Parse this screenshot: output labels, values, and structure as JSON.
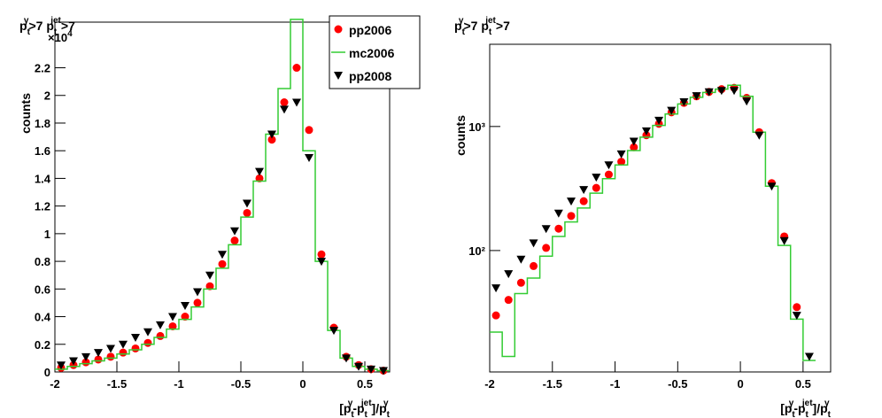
{
  "chart_data": [
    {
      "type": "line",
      "title": [
        "p",
        "t",
        "γ",
        ">7 p",
        "t",
        "jet",
        ">7"
      ],
      "y_label": "counts",
      "multiplier": [
        "×10",
        "4"
      ],
      "x_label": [
        "[p",
        "t",
        "γ",
        "-p",
        "t",
        "jet",
        "]/p",
        "t",
        "γ"
      ],
      "x": [
        -1.95,
        -1.85,
        -1.75,
        -1.65,
        -1.55,
        -1.45,
        -1.35,
        -1.25,
        -1.15,
        -1.05,
        -0.95,
        -0.85,
        -0.75,
        -0.65,
        -0.55,
        -0.45,
        -0.35,
        -0.25,
        -0.15,
        -0.05,
        0.05,
        0.15,
        0.25,
        0.35,
        0.45,
        0.55,
        0.65
      ],
      "xlim": [
        -2,
        0.7
      ],
      "xticks": [
        -2,
        -1.5,
        -1,
        -0.5,
        0,
        0.5
      ],
      "ylim": [
        0,
        2.53
      ],
      "yticks": [
        0,
        0.2,
        0.4,
        0.6,
        0.8,
        1,
        1.2,
        1.4,
        1.6,
        1.8,
        2,
        2.2
      ],
      "legend": "top-right",
      "series": [
        {
          "name": "pp2006",
          "color": "#ff0000",
          "marker": "circle",
          "values": [
            0.03,
            0.05,
            0.07,
            0.09,
            0.11,
            0.14,
            0.17,
            0.21,
            0.26,
            0.33,
            0.4,
            0.5,
            0.62,
            0.78,
            0.95,
            1.15,
            1.4,
            1.68,
            1.95,
            2.2,
            1.75,
            0.85,
            0.32,
            0.11,
            0.05,
            0.02,
            0.01
          ]
        },
        {
          "name": "mc2006",
          "color": "#33cc33",
          "marker": "step",
          "values": [
            0.02,
            0.04,
            0.06,
            0.08,
            0.1,
            0.13,
            0.16,
            0.2,
            0.25,
            0.31,
            0.38,
            0.47,
            0.6,
            0.75,
            0.92,
            1.12,
            1.38,
            1.72,
            2.05,
            2.55,
            1.6,
            0.8,
            0.3,
            0.1,
            0.04,
            0.02,
            0.01
          ]
        },
        {
          "name": "pp2008",
          "color": "#000000",
          "marker": "triangle-down",
          "values": [
            0.05,
            0.08,
            0.11,
            0.14,
            0.17,
            0.2,
            0.25,
            0.29,
            0.34,
            0.4,
            0.48,
            0.58,
            0.7,
            0.85,
            1.02,
            1.22,
            1.45,
            1.72,
            1.9,
            1.95,
            1.55,
            0.8,
            0.3,
            0.1,
            0.04,
            0.02,
            0.01
          ]
        }
      ]
    },
    {
      "type": "line",
      "title": [
        "p",
        "t",
        "γ",
        ">7 p",
        "t",
        "jet",
        ">7"
      ],
      "y_label": "counts",
      "x_label": [
        "[p",
        "t",
        "γ",
        "-p",
        "t",
        "jet",
        "]/p",
        "t",
        "γ"
      ],
      "x": [
        -1.95,
        -1.85,
        -1.75,
        -1.65,
        -1.55,
        -1.45,
        -1.35,
        -1.25,
        -1.15,
        -1.05,
        -0.95,
        -0.85,
        -0.75,
        -0.65,
        -0.55,
        -0.45,
        -0.35,
        -0.25,
        -0.15,
        -0.05,
        0.05,
        0.15,
        0.25,
        0.35,
        0.45,
        0.55,
        0.65
      ],
      "xlim": [
        -2,
        0.72
      ],
      "xticks": [
        -2,
        -1.5,
        -1,
        -0.5,
        0,
        0.5
      ],
      "ylim": [
        10.5,
        4600
      ],
      "log_y": true,
      "yticks": [
        {
          "value": 100,
          "label": "10²"
        },
        {
          "value": 1000,
          "label": "10³"
        }
      ],
      "series": [
        {
          "name": "pp2006",
          "color": "#ff0000",
          "marker": "circle",
          "values": [
            30,
            40,
            55,
            75,
            105,
            150,
            190,
            250,
            320,
            410,
            520,
            680,
            850,
            1050,
            1300,
            1550,
            1750,
            1900,
            2000,
            2050,
            1700,
            900,
            350,
            130,
            35,
            null,
            null
          ]
        },
        {
          "name": "mc2006",
          "color": "#33cc33",
          "marker": "step",
          "values": [
            22,
            14,
            45,
            60,
            90,
            130,
            170,
            220,
            290,
            380,
            490,
            640,
            820,
            1020,
            1260,
            1520,
            1720,
            1880,
            2000,
            2150,
            1750,
            900,
            330,
            110,
            28,
            13,
            null
          ]
        },
        {
          "name": "pp2008",
          "color": "#000000",
          "marker": "triangle-down",
          "values": [
            50,
            65,
            85,
            115,
            150,
            200,
            250,
            310,
            390,
            490,
            600,
            760,
            920,
            1120,
            1350,
            1580,
            1770,
            1900,
            1950,
            1950,
            1600,
            850,
            330,
            120,
            30,
            14,
            null
          ]
        }
      ]
    }
  ]
}
